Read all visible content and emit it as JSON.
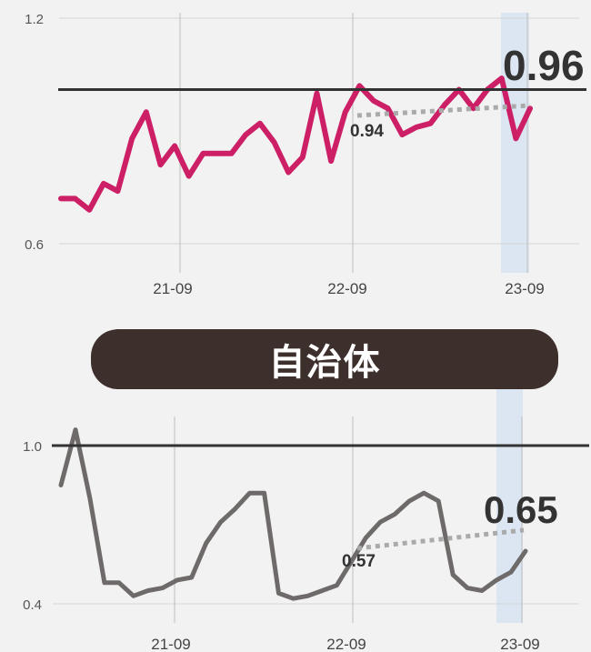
{
  "section_label": "自治体",
  "colors": {
    "background": "#f2f2f2",
    "top_series": "#cc1f66",
    "bottom_series": "#6e6a6a",
    "reference_line": "#333333",
    "trend_line": "#aaaaaa",
    "highlight_band": "#dbe6f2",
    "grid": "#d7d7d7",
    "pill": "#3d2f2c"
  },
  "chart_data": [
    {
      "type": "line",
      "x_tick_labels": [
        "21-09",
        "22-09",
        "23-09"
      ],
      "y_tick_labels": [
        "1.2",
        "0.6"
      ],
      "ylim": [
        0.6,
        1.2
      ],
      "reference_value": 1.01,
      "highlight_band": "23-09",
      "trend_start_label": "0.94",
      "trend_end_label": "0.96",
      "series": [
        {
          "values": [
            0.72,
            0.72,
            0.69,
            0.76,
            0.74,
            0.88,
            0.95,
            0.81,
            0.86,
            0.78,
            0.84,
            0.84,
            0.84,
            0.89,
            0.92,
            0.87,
            0.79,
            0.83,
            1.0,
            0.82,
            0.95,
            1.02,
            0.98,
            0.96,
            0.89,
            0.91,
            0.92,
            0.97,
            1.01,
            0.96,
            1.01,
            1.04,
            0.88,
            0.96
          ]
        }
      ]
    },
    {
      "type": "line",
      "x_tick_labels": [
        "21-09",
        "22-09",
        "23-09"
      ],
      "y_tick_labels": [
        "1.0",
        "0.4"
      ],
      "ylim": [
        0.4,
        1.0
      ],
      "reference_value": 1.0,
      "highlight_band": "23-09",
      "trend_start_label": "0.57",
      "trend_end_label": "0.65",
      "series": [
        {
          "values": [
            0.85,
            1.06,
            0.8,
            0.48,
            0.48,
            0.43,
            0.45,
            0.46,
            0.49,
            0.5,
            0.63,
            0.71,
            0.76,
            0.82,
            0.82,
            0.44,
            0.42,
            0.43,
            0.45,
            0.47,
            0.56,
            0.65,
            0.71,
            0.74,
            0.79,
            0.82,
            0.79,
            0.51,
            0.46,
            0.45,
            0.49,
            0.52,
            0.6
          ]
        }
      ]
    }
  ]
}
